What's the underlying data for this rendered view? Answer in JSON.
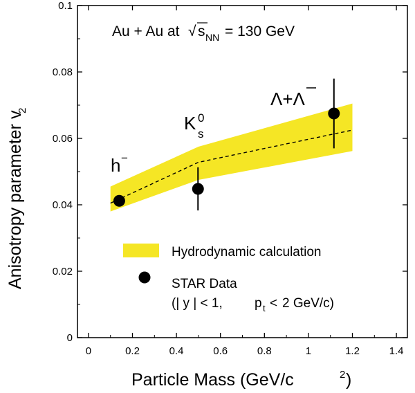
{
  "chart_data": {
    "type": "scatter",
    "title": "Au + Au at √s_NN = 130 GeV",
    "xlabel": "Particle Mass (GeV/c²)",
    "ylabel": "Anisotropy parameter v₂",
    "xlim": [
      -0.05,
      1.45
    ],
    "ylim": [
      0,
      0.1
    ],
    "x_ticks": [
      0,
      0.2,
      0.4,
      0.6,
      0.8,
      1,
      1.2,
      1.4
    ],
    "x_tick_labels": [
      "0",
      "0.2",
      "0.4",
      "0.6",
      "0.8",
      "1",
      "1.2",
      "1.4"
    ],
    "y_ticks": [
      0,
      0.02,
      0.04,
      0.06,
      0.08,
      0.1
    ],
    "y_tick_labels": [
      "0",
      "0.02",
      "0.04",
      "0.06",
      "0.08",
      "0.1"
    ],
    "grid": false,
    "legend_position": "bottom-right",
    "series": [
      {
        "name": "STAR Data",
        "kind": "scatter-with-error-bars",
        "color": "#000000",
        "points": [
          {
            "label": "h⁻",
            "x": 0.14,
            "y": 0.0412,
            "yerr": 0.001
          },
          {
            "label": "K⁰s",
            "x": 0.498,
            "y": 0.0448,
            "yerr": 0.0065
          },
          {
            "label": "Λ+Λ̄",
            "x": 1.116,
            "y": 0.0675,
            "yerr": 0.0105
          }
        ]
      },
      {
        "name": "Hydrodynamic calculation",
        "kind": "band",
        "color": "#f5e625",
        "x": [
          0.1,
          0.5,
          1.2
        ],
        "upper": [
          0.0455,
          0.0575,
          0.0705
        ],
        "lower": [
          0.038,
          0.0475,
          0.0562
        ],
        "central": [
          0.0405,
          0.0528,
          0.0625
        ]
      }
    ],
    "legend": {
      "band_label": "Hydrodynamic calculation",
      "data_label": "STAR Data",
      "cut_line1": "(| y | < 1,",
      "cut_line2": "2 GeV/c)"
    }
  }
}
